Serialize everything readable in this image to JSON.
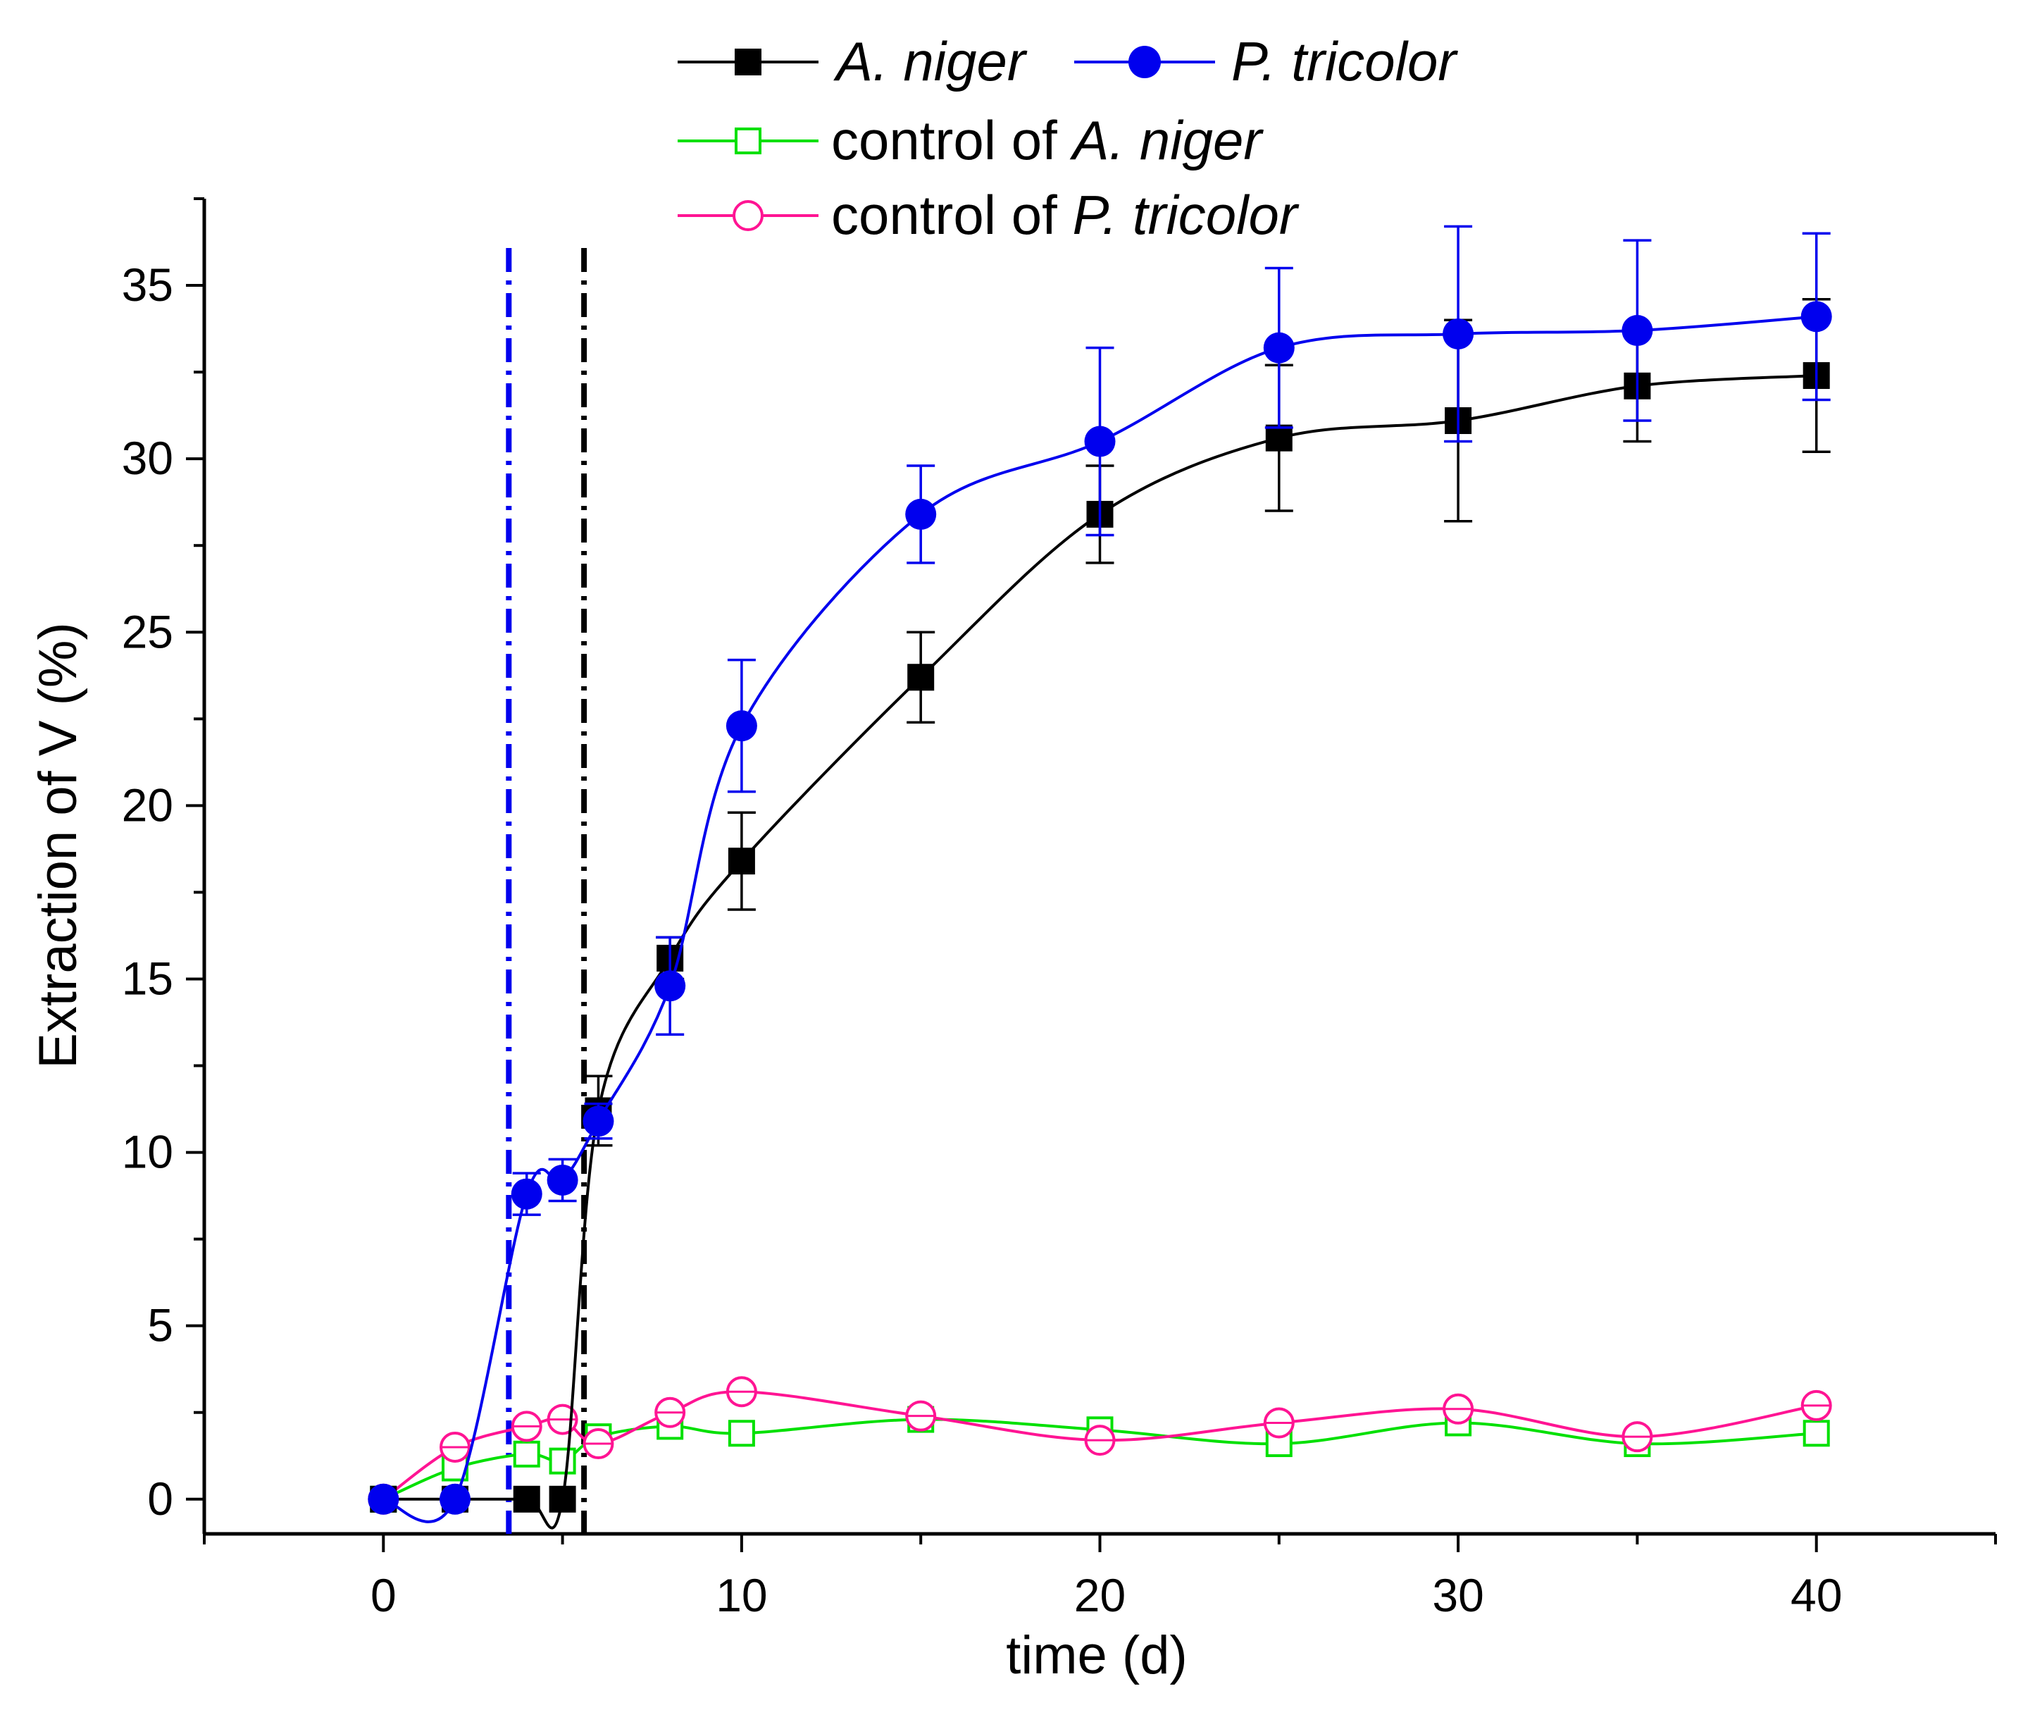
{
  "chart_data": {
    "type": "line",
    "xlabel": "time (d)",
    "ylabel": "Extraction of V (%)",
    "xlim": [
      -5,
      45
    ],
    "ylim": [
      -1,
      37.5
    ],
    "xticks": [
      0,
      10,
      20,
      30,
      40
    ],
    "yticks": [
      0,
      5,
      10,
      15,
      20,
      25,
      30,
      35
    ],
    "x": [
      0,
      2,
      4,
      5,
      6,
      8,
      10,
      15,
      20,
      25,
      30,
      35,
      40
    ],
    "series": [
      {
        "name": "A. niger",
        "color": "#000000",
        "marker": "filled-square",
        "values": [
          0,
          0,
          0,
          0,
          11.2,
          15.6,
          18.4,
          23.7,
          28.4,
          30.6,
          31.1,
          32.1,
          32.4
        ],
        "errors": [
          0,
          0,
          0,
          0,
          1.0,
          0.6,
          1.4,
          1.3,
          1.4,
          2.1,
          2.9,
          1.6,
          2.2
        ]
      },
      {
        "name": "P. tricolor",
        "color": "#0000ee",
        "marker": "filled-circle",
        "values": [
          0,
          0,
          8.8,
          9.2,
          10.9,
          14.8,
          22.3,
          28.4,
          30.5,
          33.2,
          33.6,
          33.7,
          34.1
        ],
        "errors": [
          0,
          0,
          0.6,
          0.6,
          0.5,
          1.4,
          1.9,
          1.4,
          2.7,
          2.3,
          3.1,
          2.6,
          2.4
        ]
      },
      {
        "name": "control of A. niger",
        "color": "#00e000",
        "marker": "open-square",
        "values": [
          0,
          0.9,
          1.3,
          1.1,
          1.8,
          2.1,
          1.9,
          2.3,
          2.0,
          1.6,
          2.2,
          1.6,
          1.9
        ],
        "errors": [
          0,
          0,
          0,
          0,
          0,
          0,
          0,
          0,
          0,
          0,
          0,
          0,
          0
        ]
      },
      {
        "name": "control of P. tricolor",
        "color": "#ff1493",
        "marker": "open-circle",
        "values": [
          0,
          1.5,
          2.1,
          2.3,
          1.6,
          2.5,
          3.1,
          2.4,
          1.7,
          2.2,
          2.6,
          1.8,
          2.7
        ],
        "errors": [
          0,
          0,
          0,
          0,
          0,
          0,
          0,
          0,
          0,
          0,
          0,
          0,
          0
        ]
      }
    ],
    "vertical_lines": [
      {
        "x": 3.5,
        "color": "#0000ee",
        "style": "dash-dot"
      },
      {
        "x": 5.6,
        "color": "#000000",
        "style": "dash-dot"
      }
    ],
    "legend": {
      "placement": "top",
      "entries": [
        {
          "prefix": "",
          "species": "A. niger"
        },
        {
          "prefix": "",
          "species": "P. tricolor"
        },
        {
          "prefix": "control of ",
          "species": "A. niger"
        },
        {
          "prefix": "control of ",
          "species": "P. tricolor"
        }
      ]
    },
    "grid": false
  }
}
